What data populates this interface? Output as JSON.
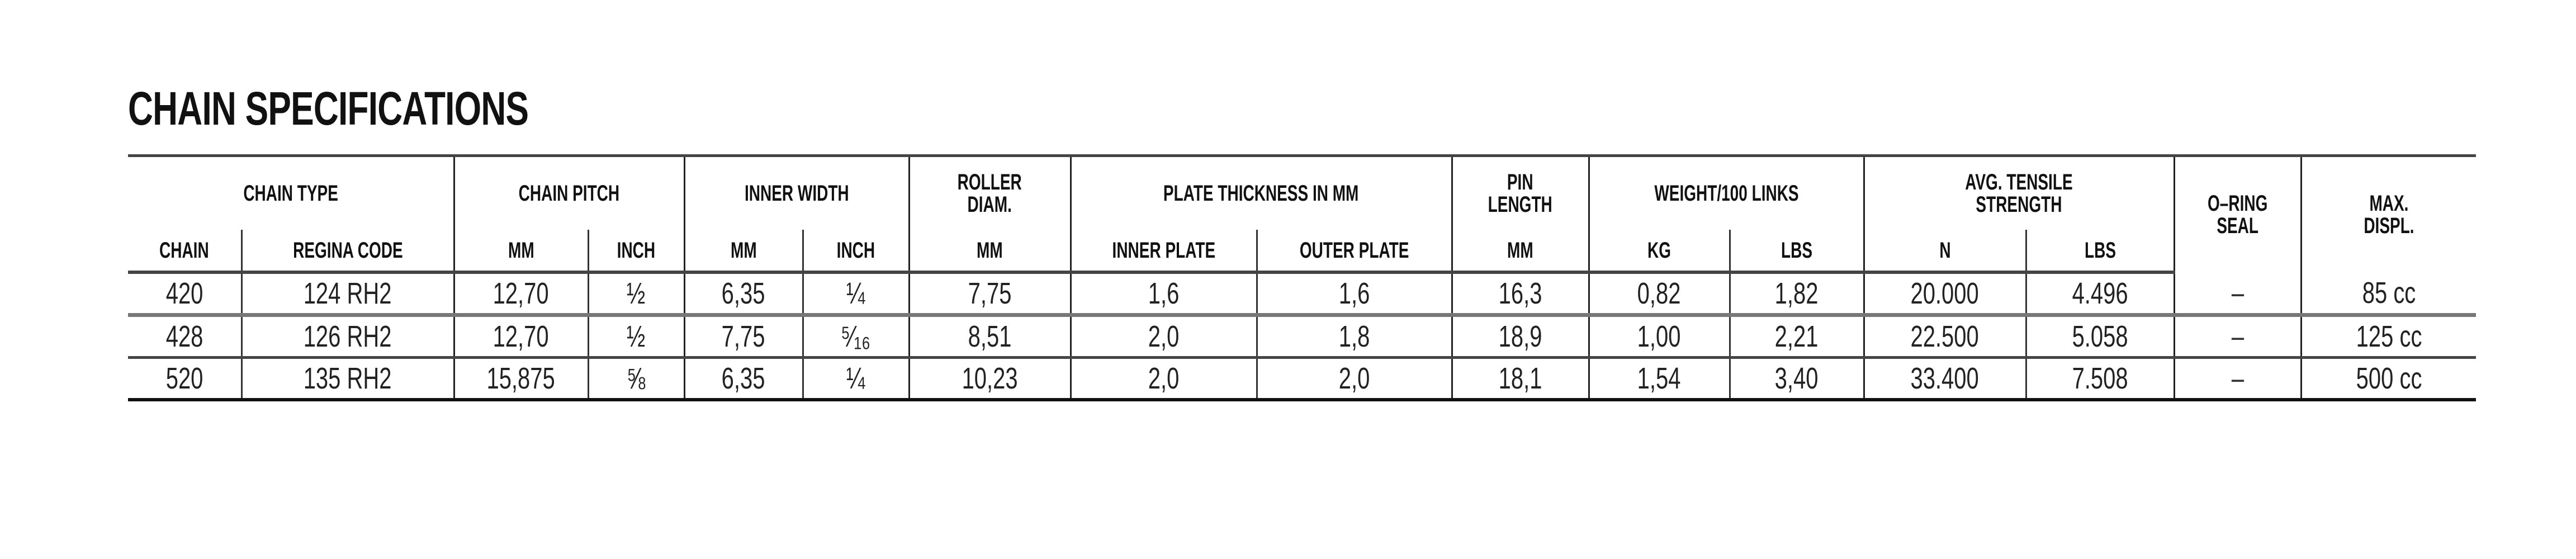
{
  "title": "CHAIN SPECIFICATIONS",
  "headers": {
    "chain_type": "CHAIN TYPE",
    "chain_pitch": "CHAIN PITCH",
    "inner_width": "INNER WIDTH",
    "roller_diam_1": "ROLLER",
    "roller_diam_2": "DIAM.",
    "plate_thickness": "PLATE THICKNESS IN MM",
    "pin_length_1": "PIN",
    "pin_length_2": "LENGTH",
    "weight": "WEIGHT/100 LINKS",
    "tensile_1": "AVG. TENSILE",
    "tensile_2": "STRENGTH",
    "oring_1": "O–RING",
    "oring_2": "SEAL",
    "displ_1": "MAX.",
    "displ_2": "DISPL.",
    "sub": {
      "chain": "CHAIN",
      "regina_code": "REGINA CODE",
      "pitch_mm": "MM",
      "pitch_inch": "INCH",
      "width_mm": "MM",
      "width_inch": "INCH",
      "roller_mm": "MM",
      "inner_plate": "INNER PLATE",
      "outer_plate": "OUTER PLATE",
      "pin_mm": "MM",
      "kg": "KG",
      "weight_lbs": "LBS",
      "n": "N",
      "tensile_lbs": "LBS"
    }
  },
  "rows": [
    {
      "chain": "420",
      "regina_code": "124 RH2",
      "pitch_mm": "12,70",
      "pitch_inch": "½",
      "width_mm": "6,35",
      "width_inch": "¼",
      "roller_mm": "7,75",
      "inner_plate": "1,6",
      "outer_plate": "1,6",
      "pin_mm": "16,3",
      "kg": "0,82",
      "weight_lbs": "1,82",
      "n": "20.000",
      "tensile_lbs": "4.496",
      "oring": "–",
      "displ": "85 cc"
    },
    {
      "chain": "428",
      "regina_code": "126 RH2",
      "pitch_mm": "12,70",
      "pitch_inch": "½",
      "width_mm": "7,75",
      "width_inch": "⁵⁄₁₆",
      "roller_mm": "8,51",
      "inner_plate": "2,0",
      "outer_plate": "1,8",
      "pin_mm": "18,9",
      "kg": "1,00",
      "weight_lbs": "2,21",
      "n": "22.500",
      "tensile_lbs": "5.058",
      "oring": "–",
      "displ": "125 cc"
    },
    {
      "chain": "520",
      "regina_code": "135 RH2",
      "pitch_mm": "15,875",
      "pitch_inch": "⅝",
      "width_mm": "6,35",
      "width_inch": "¼",
      "roller_mm": "10,23",
      "inner_plate": "2,0",
      "outer_plate": "2,0",
      "pin_mm": "18,1",
      "kg": "1,54",
      "weight_lbs": "3,40",
      "n": "33.400",
      "tensile_lbs": "7.508",
      "oring": "–",
      "displ": "500 cc"
    }
  ]
}
